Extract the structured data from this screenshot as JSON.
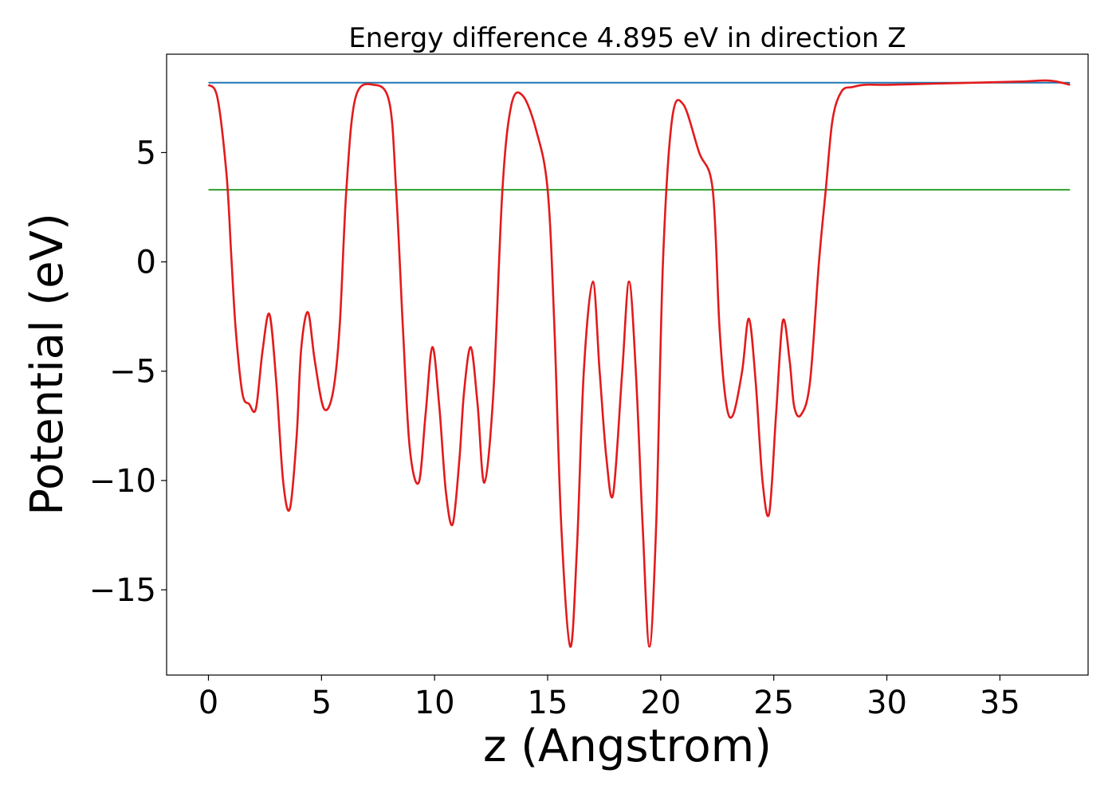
{
  "chart_data": {
    "type": "line",
    "title": "Energy difference 4.895 eV in direction Z",
    "xlabel": "z (Angstrom)",
    "ylabel": "Potential (eV)",
    "xlim": [
      -1.85,
      38.9
    ],
    "ylim": [
      -18.9,
      9.5
    ],
    "xticks": [
      0,
      5,
      10,
      15,
      20,
      25,
      30,
      35
    ],
    "xtick_labels": [
      "0",
      "5",
      "10",
      "15",
      "20",
      "25",
      "30",
      "35"
    ],
    "yticks": [
      5,
      0,
      -5,
      -10,
      -15
    ],
    "ytick_labels": [
      "5",
      "0",
      "−5",
      "−10",
      "−15"
    ],
    "grid": false,
    "legend": "none",
    "series": [
      {
        "color": "#1f77b4",
        "x": [
          0,
          38.1
        ],
        "y": [
          8.2,
          8.2
        ]
      },
      {
        "color": "#2ca02c",
        "x": [
          0,
          38.1
        ],
        "y": [
          3.3,
          3.3
        ]
      },
      {
        "color": "#e31a1c",
        "x": [
          0,
          0.4,
          0.8,
          1.0,
          1.2,
          1.5,
          1.8,
          2.1,
          2.4,
          2.7,
          3.0,
          3.3,
          3.6,
          3.9,
          4.1,
          4.4,
          4.7,
          5.1,
          5.5,
          5.8,
          6.1,
          6.5,
          7.3,
          8.0,
          8.3,
          8.6,
          8.9,
          9.3,
          9.6,
          9.9,
          10.2,
          10.5,
          10.8,
          11.1,
          11.3,
          11.6,
          11.9,
          12.2,
          12.6,
          13.0,
          13.4,
          13.9,
          14.5,
          15.0,
          15.3,
          15.6,
          16.0,
          16.3,
          16.6,
          17.0,
          17.3,
          17.6,
          17.9,
          18.3,
          18.6,
          18.9,
          19.2,
          19.5,
          19.8,
          20.1,
          20.5,
          21.0,
          21.7,
          22.3,
          22.6,
          22.9,
          23.2,
          23.6,
          23.9,
          24.2,
          24.5,
          24.8,
          25.1,
          25.4,
          25.7,
          25.9,
          26.2,
          26.6,
          27.0,
          27.3,
          27.6,
          28.0,
          28.5,
          29.0,
          30.0,
          32.0,
          34.0,
          36.0,
          37.0,
          37.5,
          38.1
        ],
        "y": [
          8.1,
          7.5,
          4.0,
          0.5,
          -3.0,
          -6.0,
          -6.5,
          -6.7,
          -4.0,
          -2.4,
          -5.5,
          -10.0,
          -11.3,
          -8.0,
          -4.0,
          -2.3,
          -4.5,
          -6.7,
          -6.0,
          -3.0,
          3.3,
          7.5,
          8.1,
          7.3,
          3.3,
          -3.0,
          -8.5,
          -10.1,
          -7.0,
          -3.9,
          -6.5,
          -10.5,
          -12.0,
          -9.0,
          -6.0,
          -3.9,
          -6.5,
          -10.1,
          -6.0,
          3.3,
          7.2,
          7.6,
          6.0,
          3.3,
          -3.0,
          -12.0,
          -17.6,
          -13.0,
          -5.0,
          -0.9,
          -5.0,
          -9.0,
          -10.6,
          -5.0,
          -0.9,
          -5.0,
          -12.0,
          -17.6,
          -12.0,
          0.0,
          6.5,
          7.2,
          5.0,
          3.3,
          -3.0,
          -6.5,
          -7.0,
          -5.0,
          -2.6,
          -5.5,
          -10.0,
          -11.5,
          -7.0,
          -2.7,
          -4.5,
          -6.6,
          -7.0,
          -5.5,
          0.0,
          3.3,
          6.5,
          7.8,
          8.0,
          8.1,
          8.1,
          8.15,
          8.2,
          8.25,
          8.3,
          8.25,
          8.1
        ]
      }
    ]
  }
}
